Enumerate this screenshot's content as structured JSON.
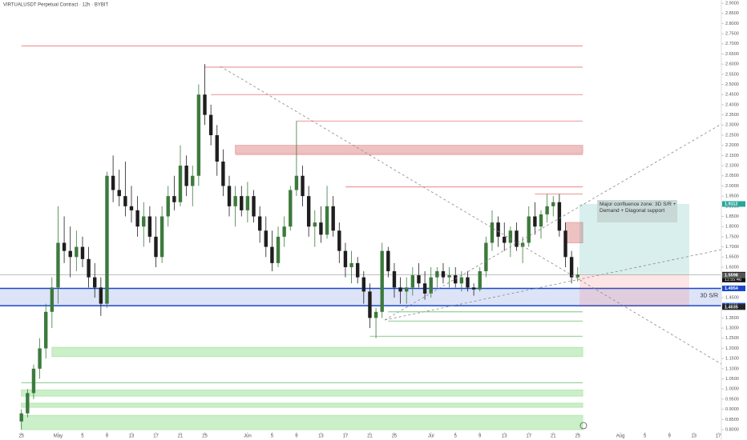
{
  "chart_data": {
    "type": "candlestick",
    "title": "VIRTUALUSDT Perpetual Contract · 12h · BYBIT",
    "annotation": "Major confluence zone: 3D S/R + Demand + Diagonal support",
    "zone_label": "3D S/R",
    "up_color": "#3d7a3d",
    "down_color": "#1e1e1e",
    "xlim": [
      -3.5,
      114.5
    ],
    "ylim": [
      0.7488,
      2.9158
    ],
    "xticks": [
      {
        "value": 0,
        "label": "25"
      },
      {
        "value": 6,
        "label": "May"
      },
      {
        "value": 10,
        "label": "5"
      },
      {
        "value": 14,
        "label": "9"
      },
      {
        "value": 18,
        "label": "13"
      },
      {
        "value": 22,
        "label": "17"
      },
      {
        "value": 26,
        "label": "21"
      },
      {
        "value": 30,
        "label": "25"
      },
      {
        "value": 37,
        "label": "Jun"
      },
      {
        "value": 41,
        "label": "5"
      },
      {
        "value": 45,
        "label": "9"
      },
      {
        "value": 49,
        "label": "13"
      },
      {
        "value": 53,
        "label": "17"
      },
      {
        "value": 57,
        "label": "21"
      },
      {
        "value": 61,
        "label": "25"
      },
      {
        "value": 67,
        "label": "Jul"
      },
      {
        "value": 71,
        "label": "5"
      },
      {
        "value": 75,
        "label": "9"
      },
      {
        "value": 79,
        "label": "13"
      },
      {
        "value": 83,
        "label": "17"
      },
      {
        "value": 87,
        "label": "21"
      },
      {
        "value": 91,
        "label": "25"
      },
      {
        "value": 98,
        "label": "Aug"
      },
      {
        "value": 102,
        "label": "5"
      },
      {
        "value": 106,
        "label": "9"
      },
      {
        "value": 110,
        "label": "13"
      },
      {
        "value": 114,
        "label": "17"
      }
    ],
    "yticks": [
      {
        "value": 2.9,
        "label": "2.9000"
      },
      {
        "value": 2.85,
        "label": "2.8500"
      },
      {
        "value": 2.8,
        "label": "2.8000"
      },
      {
        "value": 2.75,
        "label": "2.7500"
      },
      {
        "value": 2.7,
        "label": "2.7000"
      },
      {
        "value": 2.65,
        "label": "2.6500"
      },
      {
        "value": 2.6,
        "label": "2.6000"
      },
      {
        "value": 2.55,
        "label": "2.5500"
      },
      {
        "value": 2.5,
        "label": "2.5000"
      },
      {
        "value": 2.45,
        "label": "2.4500"
      },
      {
        "value": 2.4,
        "label": "2.4000"
      },
      {
        "value": 2.35,
        "label": "2.3500"
      },
      {
        "value": 2.3,
        "label": "2.3000"
      },
      {
        "value": 2.25,
        "label": "2.2500"
      },
      {
        "value": 2.2,
        "label": "2.2000"
      },
      {
        "value": 2.15,
        "label": "2.1500"
      },
      {
        "value": 2.1,
        "label": "2.1000"
      },
      {
        "value": 2.05,
        "label": "2.0500"
      },
      {
        "value": 2,
        "label": "2.0000"
      },
      {
        "value": 1.95,
        "label": "1.9500"
      },
      {
        "value": 1.9,
        "label": "1.9000"
      },
      {
        "value": 1.85,
        "label": "1.8500"
      },
      {
        "value": 1.8,
        "label": "1.8000"
      },
      {
        "value": 1.75,
        "label": "1.7500"
      },
      {
        "value": 1.7,
        "label": "1.7000"
      },
      {
        "value": 1.65,
        "label": "1.6500"
      },
      {
        "value": 1.6,
        "label": "1.6000"
      },
      {
        "value": 1.55,
        "label": "1.5500"
      },
      {
        "value": 1.5,
        "label": "1.5000"
      },
      {
        "value": 1.45,
        "label": "1.4500"
      },
      {
        "value": 1.4,
        "label": "1.4000"
      },
      {
        "value": 1.35,
        "label": "1.3500"
      },
      {
        "value": 1.3,
        "label": "1.3000"
      },
      {
        "value": 1.25,
        "label": "1.2500"
      },
      {
        "value": 1.2,
        "label": "1.2000"
      },
      {
        "value": 1.15,
        "label": "1.1500"
      },
      {
        "value": 1.1,
        "label": "1.1000"
      },
      {
        "value": 1.05,
        "label": "1.0500"
      },
      {
        "value": 1,
        "label": "1.0000"
      },
      {
        "value": 0.95,
        "label": "0.9500"
      },
      {
        "value": 0.9,
        "label": "0.9000"
      },
      {
        "value": 0.85,
        "label": "0.8500"
      },
      {
        "value": 0.8,
        "label": "0.8000"
      }
    ],
    "candles": [
      [
        0.84,
        0.9,
        0.8,
        0.88
      ],
      [
        0.88,
        1.0,
        0.86,
        0.98
      ],
      [
        0.98,
        1.12,
        0.95,
        1.1
      ],
      [
        1.1,
        1.25,
        1.05,
        1.2
      ],
      [
        1.2,
        1.42,
        1.15,
        1.38
      ],
      [
        1.38,
        1.55,
        1.3,
        1.5
      ],
      [
        1.5,
        1.9,
        1.42,
        1.72
      ],
      [
        1.72,
        1.85,
        1.62,
        1.68
      ],
      [
        1.68,
        1.8,
        1.55,
        1.65
      ],
      [
        1.65,
        1.78,
        1.58,
        1.7
      ],
      [
        1.7,
        1.75,
        1.6,
        1.64
      ],
      [
        1.64,
        1.7,
        1.5,
        1.55
      ],
      [
        1.55,
        1.62,
        1.45,
        1.5
      ],
      [
        1.5,
        1.55,
        1.36,
        1.42
      ],
      [
        1.42,
        2.07,
        1.4,
        2.05
      ],
      [
        2.05,
        2.15,
        1.92,
        1.98
      ],
      [
        1.98,
        2.08,
        1.9,
        1.95
      ],
      [
        1.95,
        2.12,
        1.85,
        1.9
      ],
      [
        1.9,
        2.0,
        1.82,
        1.88
      ],
      [
        1.88,
        1.95,
        1.75,
        1.8
      ],
      [
        1.8,
        1.92,
        1.7,
        1.85
      ],
      [
        1.85,
        1.9,
        1.72,
        1.75
      ],
      [
        1.75,
        1.85,
        1.6,
        1.65
      ],
      [
        1.65,
        1.9,
        1.62,
        1.85
      ],
      [
        1.85,
        2.0,
        1.8,
        1.95
      ],
      [
        1.95,
        2.05,
        1.88,
        1.92
      ],
      [
        1.92,
        2.2,
        1.9,
        2.1
      ],
      [
        2.1,
        2.15,
        1.95,
        2.0
      ],
      [
        2.0,
        2.1,
        1.9,
        2.05
      ],
      [
        2.05,
        2.5,
        2.0,
        2.45
      ],
      [
        2.45,
        2.6,
        2.3,
        2.35
      ],
      [
        2.35,
        2.4,
        2.2,
        2.25
      ],
      [
        2.25,
        2.3,
        2.05,
        2.12
      ],
      [
        2.12,
        2.18,
        1.95,
        2.0
      ],
      [
        2.0,
        2.05,
        1.85,
        1.9
      ],
      [
        1.9,
        2.0,
        1.8,
        1.95
      ],
      [
        1.95,
        2.0,
        1.85,
        1.88
      ],
      [
        1.88,
        2.02,
        1.82,
        1.95
      ],
      [
        1.95,
        1.98,
        1.82,
        1.85
      ],
      [
        1.85,
        1.9,
        1.72,
        1.78
      ],
      [
        1.78,
        1.85,
        1.65,
        1.7
      ],
      [
        1.7,
        1.78,
        1.58,
        1.62
      ],
      [
        1.62,
        1.8,
        1.6,
        1.75
      ],
      [
        1.75,
        1.85,
        1.7,
        1.8
      ],
      [
        1.8,
        2.0,
        1.78,
        1.98
      ],
      [
        1.98,
        2.32,
        1.95,
        2.05
      ],
      [
        2.05,
        2.1,
        1.9,
        1.95
      ],
      [
        1.95,
        2.0,
        1.75,
        1.8
      ],
      [
        1.8,
        1.88,
        1.7,
        1.82
      ],
      [
        1.82,
        1.9,
        1.72,
        1.76
      ],
      [
        1.76,
        2.0,
        1.74,
        1.9
      ],
      [
        1.9,
        1.95,
        1.75,
        1.78
      ],
      [
        1.78,
        1.82,
        1.62,
        1.68
      ],
      [
        1.68,
        1.72,
        1.55,
        1.6
      ],
      [
        1.6,
        1.68,
        1.52,
        1.62
      ],
      [
        1.62,
        1.65,
        1.52,
        1.55
      ],
      [
        1.55,
        1.58,
        1.42,
        1.48
      ],
      [
        1.48,
        1.52,
        1.3,
        1.35
      ],
      [
        1.35,
        1.4,
        1.25,
        1.38
      ],
      [
        1.38,
        1.72,
        1.35,
        1.68
      ],
      [
        1.68,
        1.7,
        1.55,
        1.58
      ],
      [
        1.58,
        1.62,
        1.45,
        1.5
      ],
      [
        1.5,
        1.55,
        1.42,
        1.48
      ],
      [
        1.48,
        1.55,
        1.42,
        1.5
      ],
      [
        1.5,
        1.6,
        1.46,
        1.56
      ],
      [
        1.56,
        1.62,
        1.5,
        1.52
      ],
      [
        1.52,
        1.58,
        1.44,
        1.47
      ],
      [
        1.47,
        1.6,
        1.45,
        1.55
      ],
      [
        1.55,
        1.6,
        1.5,
        1.58
      ],
      [
        1.58,
        1.62,
        1.52,
        1.55
      ],
      [
        1.55,
        1.6,
        1.5,
        1.56
      ],
      [
        1.56,
        1.6,
        1.5,
        1.52
      ],
      [
        1.52,
        1.58,
        1.48,
        1.55
      ],
      [
        1.55,
        1.58,
        1.48,
        1.5
      ],
      [
        1.5,
        1.52,
        1.46,
        1.49
      ],
      [
        1.49,
        1.6,
        1.48,
        1.58
      ],
      [
        1.58,
        1.75,
        1.55,
        1.72
      ],
      [
        1.72,
        1.88,
        1.68,
        1.82
      ],
      [
        1.82,
        1.85,
        1.7,
        1.75
      ],
      [
        1.75,
        1.82,
        1.68,
        1.72
      ],
      [
        1.72,
        1.8,
        1.65,
        1.78
      ],
      [
        1.78,
        1.82,
        1.68,
        1.7
      ],
      [
        1.7,
        1.75,
        1.62,
        1.72
      ],
      [
        1.72,
        1.9,
        1.7,
        1.85
      ],
      [
        1.85,
        1.92,
        1.76,
        1.8
      ],
      [
        1.8,
        1.88,
        1.74,
        1.86
      ],
      [
        1.86,
        1.96,
        1.82,
        1.9
      ],
      [
        1.9,
        1.95,
        1.85,
        1.92
      ],
      [
        1.92,
        1.96,
        1.75,
        1.78
      ],
      [
        1.78,
        1.82,
        1.6,
        1.65
      ],
      [
        1.65,
        1.68,
        1.52,
        1.55
      ],
      [
        1.55,
        1.6,
        1.53,
        1.563
      ]
    ],
    "levels": [
      {
        "value": 2.69,
        "start": 0,
        "color": "#e57373"
      },
      {
        "value": 2.585,
        "start": 30,
        "color": "#e57373"
      },
      {
        "value": 2.45,
        "start": 31,
        "color": "#e57373"
      },
      {
        "value": 2.32,
        "start": 45,
        "color": "#e57373"
      },
      {
        "value": 2.155,
        "start": 35,
        "color": "#e57373"
      },
      {
        "value": 1.995,
        "start": 53,
        "color": "#e57373"
      },
      {
        "value": 1.96,
        "start": 84,
        "color": "#e57373"
      },
      {
        "value": 1.38,
        "start": 60,
        "color": "#66bb6a"
      },
      {
        "value": 1.335,
        "start": 60,
        "color": "#66bb6a"
      },
      {
        "value": 1.26,
        "start": 57,
        "color": "#66bb6a"
      },
      {
        "value": 1.03,
        "start": 0,
        "color": "#66bb6a"
      }
    ],
    "zones": [
      {
        "from": 2.2,
        "to": 2.16,
        "start": 35,
        "color": "#e8a8a8"
      },
      {
        "from": 1.82,
        "to": 1.72,
        "start": 89,
        "color": "#e8a8a8"
      },
      {
        "from": 1.205,
        "to": 1.16,
        "start": 5,
        "color": "#b5e8b0"
      },
      {
        "from": 0.995,
        "to": 0.965,
        "start": 0,
        "color": "#b5e8b0"
      },
      {
        "from": 0.93,
        "to": 0.91,
        "start": 0,
        "color": "#b5e8b0"
      },
      {
        "from": 0.87,
        "to": 0.8,
        "start": 0,
        "color": "#b5e8b0"
      }
    ],
    "sr_zone": {
      "from": 1.4954,
      "to": 1.4101,
      "color": "#1848cc"
    },
    "tags": [
      {
        "value": 1.9112,
        "label": "1.9112",
        "color": "#26a69a"
      },
      {
        "value": 1.563,
        "label": "1.5630",
        "sub": "11:55:46",
        "color": "#111111"
      },
      {
        "value": 1.5598,
        "label": "1.5598",
        "color": "#555555"
      },
      {
        "value": 1.4954,
        "label": "1.4954",
        "color": "#1848cc"
      },
      {
        "value": 1.4101,
        "label": "1.4101",
        "color": "#1848cc"
      },
      {
        "value": 1.4035,
        "label": "1.4035",
        "color": "#222222"
      }
    ]
  }
}
